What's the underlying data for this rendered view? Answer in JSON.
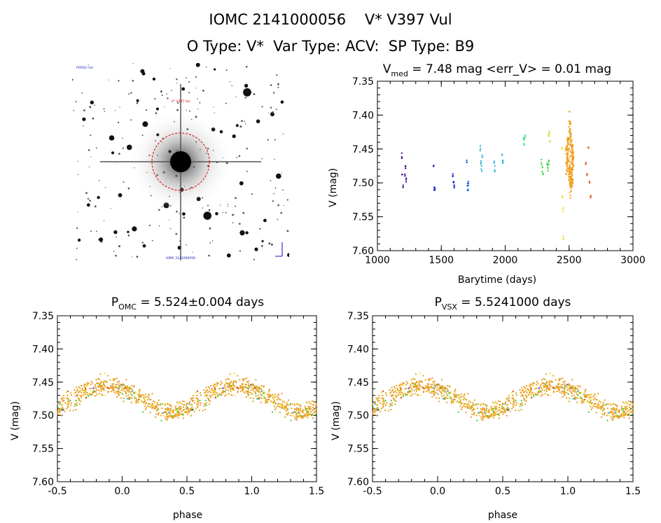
{
  "header": {
    "title": "IOMC 2141000056    V* V397 Vul",
    "subtitle": "O Type: V*  Var Type: ACV:  SP Type: B9"
  },
  "sky_image": {
    "top_left_label": "POSS2 red",
    "target_label": "V* V397 Vul",
    "bottom_label": "IOMC 2141000056",
    "colors": {
      "background": "#ffffff",
      "stars": "#1a1a1a",
      "circle": "#e00000",
      "labels": "#1010c0"
    }
  },
  "chart_data": [
    {
      "type": "scatter",
      "id": "time-series",
      "title_prefix": "V",
      "title_sub": "med",
      "title_rest": " = 7.48 mag <err_V> = 0.01 mag",
      "xlabel": "Barytime (days)",
      "ylabel": "V (mag)",
      "xlim": [
        1000,
        3000
      ],
      "ylim": [
        7.6,
        7.35
      ],
      "y_inverted": true,
      "xticks": [
        1000,
        1500,
        2000,
        2500,
        3000
      ],
      "xtick_labels": [
        "1000",
        "1500",
        "2000",
        "2500",
        "3000"
      ],
      "yticks": [
        7.35,
        7.4,
        7.45,
        7.5,
        7.55,
        7.6
      ],
      "ytick_labels": [
        "7.35",
        "7.40",
        "7.45",
        "7.50",
        "7.55",
        "7.60"
      ],
      "grid": false,
      "groups": [
        {
          "color": "#3a0088",
          "x": [
            1190,
            1195,
            1200,
            1215,
            1220,
            1225
          ],
          "y": [
            7.46,
            7.485,
            7.505,
            7.49,
            7.475,
            7.495
          ]
        },
        {
          "color": "#1020d0",
          "x": [
            1440,
            1445,
            1448,
            1592,
            1597,
            1600
          ],
          "y": [
            7.475,
            7.51,
            7.508,
            7.49,
            7.5,
            7.505
          ]
        },
        {
          "color": "#1060e0",
          "x": [
            1700,
            1705,
            1708,
            1712
          ],
          "y": [
            7.47,
            7.505,
            7.51,
            7.5
          ]
        },
        {
          "color": "#20b0d8",
          "x": [
            1805,
            1810,
            1815,
            1820,
            1912,
            1918,
            1975,
            1980
          ],
          "y": [
            7.45,
            7.47,
            7.48,
            7.46,
            7.47,
            7.48,
            7.46,
            7.47
          ]
        },
        {
          "color": "#30e080",
          "x": [
            2145,
            2150,
            2155
          ],
          "y": [
            7.435,
            7.44,
            7.43
          ]
        },
        {
          "color": "#40d040",
          "x": [
            2285,
            2290,
            2295,
            2330,
            2335,
            2340
          ],
          "y": [
            7.47,
            7.48,
            7.485,
            7.475,
            7.48,
            7.47
          ]
        },
        {
          "color": "#c8e040",
          "x": [
            2340,
            2345,
            2350
          ],
          "y": [
            7.43,
            7.425,
            7.44
          ]
        },
        {
          "color": "#f0e020",
          "x": [
            2445,
            2448,
            2452,
            2456
          ],
          "y": [
            7.45,
            7.52,
            7.54,
            7.58
          ]
        },
        {
          "color": "#f0a020",
          "x": [
            2480,
            2490,
            2500,
            2505,
            2510,
            2515,
            2520,
            2525,
            2530
          ],
          "y": [
            7.47,
            7.45,
            7.48,
            7.42,
            7.5,
            7.44,
            7.49,
            7.46,
            7.48
          ]
        },
        {
          "color": "#e06020",
          "x": [
            2630,
            2640,
            2650,
            2660,
            2670
          ],
          "y": [
            7.47,
            7.49,
            7.45,
            7.5,
            7.52
          ]
        }
      ]
    },
    {
      "type": "scatter",
      "id": "phase-omc",
      "title_prefix": "P",
      "title_sub": "OMC",
      "title_rest": " = 5.524±0.004 days",
      "xlabel": "phase",
      "ylabel": "V (mag)",
      "xlim": [
        -0.5,
        1.5
      ],
      "ylim": [
        7.6,
        7.35
      ],
      "y_inverted": true,
      "xticks": [
        -0.5,
        0.0,
        0.5,
        1.0,
        1.5
      ],
      "xtick_labels": [
        "-0.5",
        "0.0",
        "0.5",
        "1.0",
        "1.5"
      ],
      "yticks": [
        7.35,
        7.4,
        7.45,
        7.5,
        7.55,
        7.6
      ],
      "ytick_labels": [
        "7.35",
        "7.40",
        "7.45",
        "7.50",
        "7.55",
        "7.60"
      ],
      "grid": false,
      "light_curve": {
        "mean": 7.475,
        "amplitude": 0.04,
        "min_phase": 0.38,
        "max_phase": 0.0
      },
      "series_colors": [
        "#e8a020",
        "#f0e020",
        "#40d040",
        "#20b0d8",
        "#1020d0",
        "#3a0088",
        "#e04010"
      ]
    },
    {
      "type": "scatter",
      "id": "phase-vsx",
      "title_prefix": "P",
      "title_sub": "VSX",
      "title_rest": " = 5.5241000 days",
      "xlabel": "phase",
      "ylabel": "V (mag)",
      "xlim": [
        -0.5,
        1.5
      ],
      "ylim": [
        7.6,
        7.35
      ],
      "y_inverted": true,
      "xticks": [
        -0.5,
        0.0,
        0.5,
        1.0,
        1.5
      ],
      "xtick_labels": [
        "-0.5",
        "0.0",
        "0.5",
        "1.0",
        "1.5"
      ],
      "yticks": [
        7.35,
        7.4,
        7.45,
        7.5,
        7.55,
        7.6
      ],
      "ytick_labels": [
        "7.35",
        "7.40",
        "7.45",
        "7.50",
        "7.55",
        "7.60"
      ],
      "grid": false,
      "light_curve": {
        "mean": 7.475,
        "amplitude": 0.04,
        "min_phase": 0.38,
        "max_phase": 0.0
      },
      "series_colors": [
        "#e8a020",
        "#f0e020",
        "#40d040",
        "#20b0d8",
        "#1020d0",
        "#3a0088",
        "#e04010"
      ]
    }
  ]
}
